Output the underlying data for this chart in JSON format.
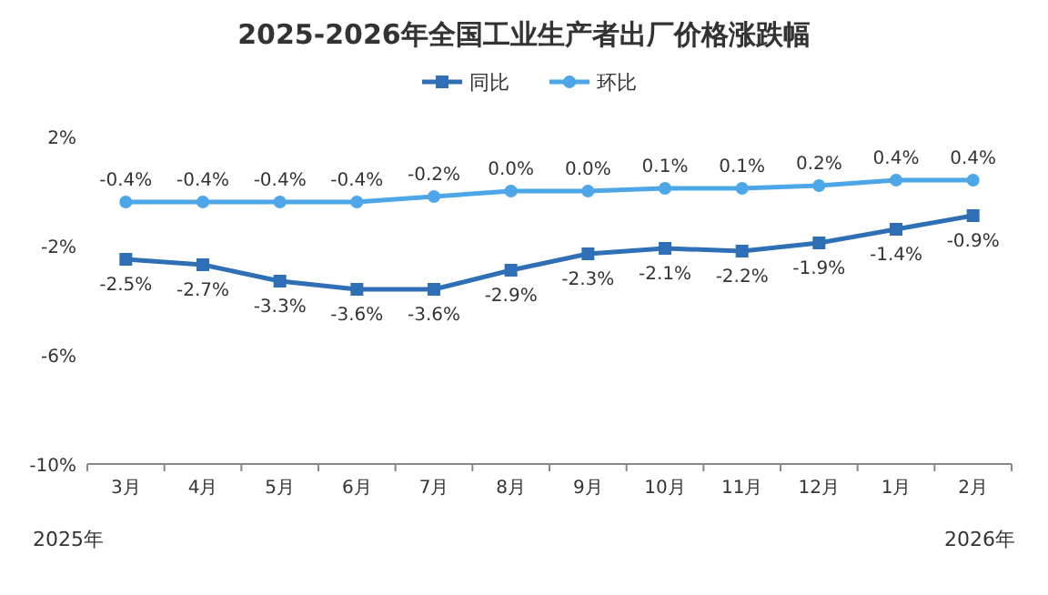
{
  "chart_data": {
    "type": "line",
    "title": "2025-2026年全国工业生产者出厂价格涨跌幅",
    "categories": [
      "3月",
      "4月",
      "5月",
      "6月",
      "7月",
      "8月",
      "9月",
      "10月",
      "11月",
      "12月",
      "1月",
      "2月"
    ],
    "series": [
      {
        "name": "同比",
        "color": "#2f6fb5",
        "marker": "square",
        "values": [
          -2.5,
          -2.7,
          -3.3,
          -3.6,
          -3.6,
          -2.9,
          -2.3,
          -2.1,
          -2.2,
          -1.9,
          -1.4,
          -0.9
        ],
        "value_labels": [
          "-2.5%",
          "-2.7%",
          "-3.3%",
          "-3.6%",
          "-3.6%",
          "-2.9%",
          "-2.3%",
          "-2.1%",
          "-2.2%",
          "-1.9%",
          "-1.4%",
          "-0.9%"
        ]
      },
      {
        "name": "环比",
        "color": "#4da6e8",
        "marker": "circle",
        "values": [
          -0.4,
          -0.4,
          -0.4,
          -0.4,
          -0.2,
          0.0,
          0.0,
          0.1,
          0.1,
          0.2,
          0.4,
          0.4
        ],
        "value_labels": [
          "-0.4%",
          "-0.4%",
          "-0.4%",
          "-0.4%",
          "-0.2%",
          "0.0%",
          "0.0%",
          "0.1%",
          "0.1%",
          "0.2%",
          "0.4%",
          "0.4%"
        ]
      }
    ],
    "ylim": [
      -10,
      2
    ],
    "yticks": [
      {
        "value": 2,
        "label": "2%"
      },
      {
        "value": -2,
        "label": "-2%"
      },
      {
        "value": -6,
        "label": "-6%"
      },
      {
        "value": -10,
        "label": "-10%"
      }
    ],
    "legend": "top",
    "line_style": "solid",
    "annotations": [
      "2025年",
      "2026年"
    ]
  }
}
